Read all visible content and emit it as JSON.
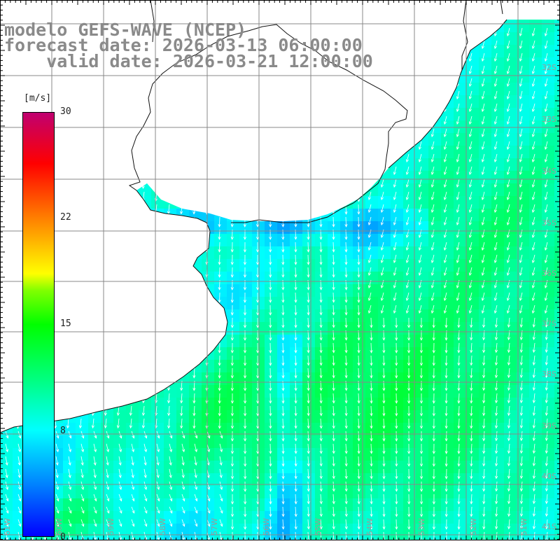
{
  "title": {
    "model": "modelo GEFS-WAVE (NCEP)",
    "forecast": "forecast date: 2026-03-13 06:00:00",
    "valid": "    valid date: 2026-03-21 12:00:00"
  },
  "colorbar": {
    "unit": "[m/s]",
    "ticks": [
      "30",
      "22",
      "15",
      "8",
      "0"
    ],
    "tick_values": [
      30,
      22,
      15,
      8,
      0
    ],
    "colors": [
      "#0000ff",
      "#0080ff",
      "#00ffff",
      "#00ff80",
      "#00ff00",
      "#ffff00",
      "#ff0000",
      "#c00070"
    ]
  },
  "axes": {
    "lat_labels": [
      "32S",
      "33S",
      "34S",
      "35S",
      "36S",
      "37S",
      "38S",
      "39S",
      "40S",
      "41S"
    ],
    "lon_labels": [
      "61W",
      "60W",
      "59W",
      "58W",
      "57W",
      "56W",
      "55W",
      "54W",
      "53W",
      "52W",
      "51W"
    ]
  }
}
